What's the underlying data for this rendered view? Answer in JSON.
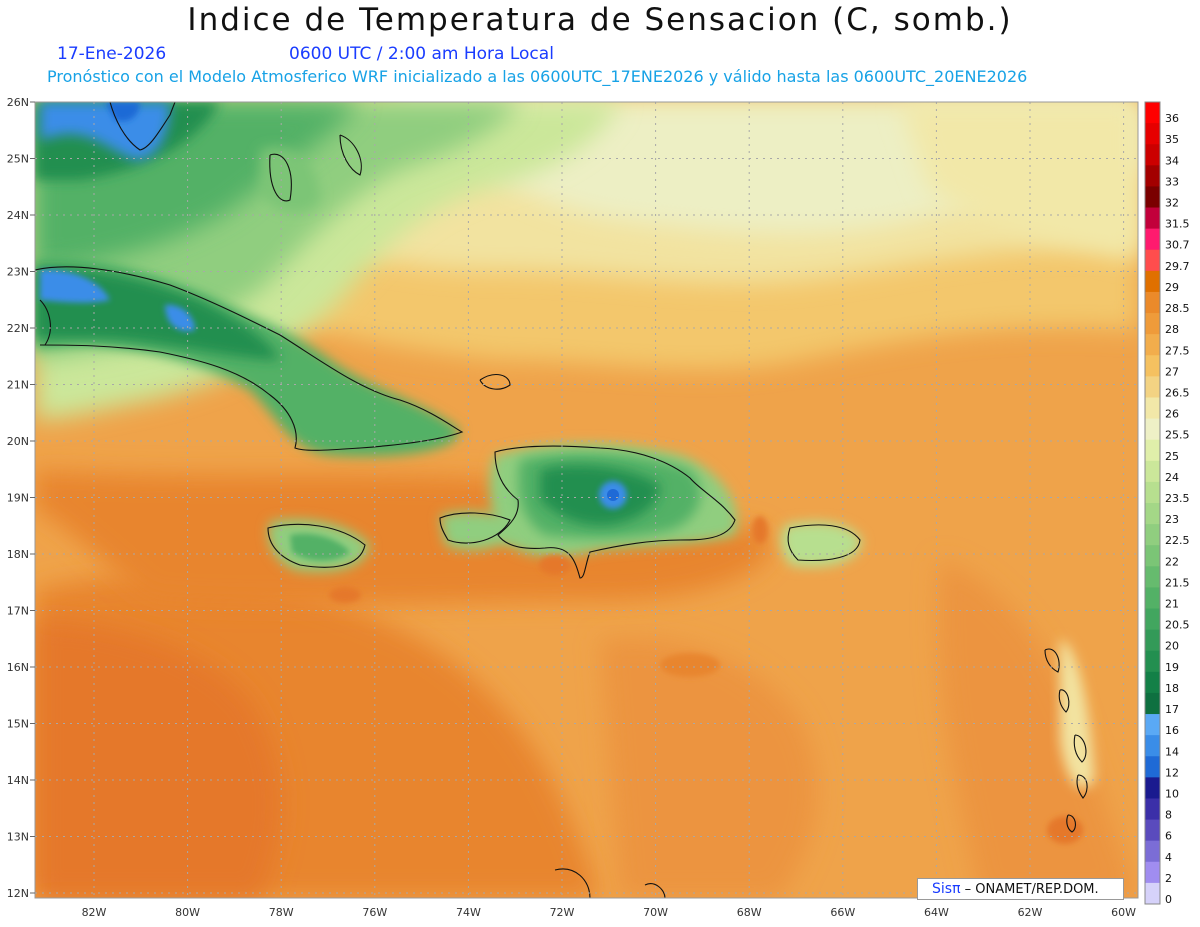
{
  "title": "Indice de Temperatura de Sensacion (C, somb.)",
  "subtitle": {
    "date": "17-Ene-2026",
    "time": "0600 UTC / 2:00 am Hora Local",
    "model": "Pronóstico con el Modelo Atmosferico WRF inicializado a las 0600UTC_17ENE2026 y válido hasta las  0600UTC_20ENE2026"
  },
  "credit": {
    "brand": "Sisπ",
    "org": "– ONAMET/REP.DOM."
  },
  "map": {
    "lon_labels": [
      "82W",
      "80W",
      "78W",
      "76W",
      "74W",
      "72W",
      "70W",
      "68W",
      "66W",
      "64W",
      "62W",
      "60W"
    ],
    "lat_labels": [
      "26N",
      "25N",
      "24N",
      "23N",
      "22N",
      "21N",
      "20N",
      "19N",
      "18N",
      "17N",
      "16N",
      "15N",
      "14N",
      "13N",
      "12N"
    ]
  },
  "colorbar": {
    "levels": [
      "36",
      "35",
      "34",
      "33",
      "32",
      "31.5",
      "30.7",
      "29.7",
      "29",
      "28.5",
      "28",
      "27.5",
      "27",
      "26.5",
      "26",
      "25.5",
      "25",
      "24",
      "23.5",
      "23",
      "22.5",
      "22",
      "21.5",
      "21",
      "20.5",
      "20",
      "19",
      "18",
      "17",
      "16",
      "14",
      "12",
      "10",
      "8",
      "6",
      "4",
      "2",
      "0"
    ],
    "colors": [
      "#ff0000",
      "#e60000",
      "#cc0000",
      "#a30000",
      "#7a0000",
      "#c2003b",
      "#ff1a6e",
      "#ff4d4d",
      "#e07000",
      "#eb8a2a",
      "#ef9b3a",
      "#f2ad4c",
      "#f5c160",
      "#f3d383",
      "#f2e8a8",
      "#eef0c6",
      "#e0efaa",
      "#cbe79a",
      "#b7df8f",
      "#a4d787",
      "#90ce7f",
      "#7bc576",
      "#66bb6e",
      "#53b166",
      "#42a65f",
      "#339a58",
      "#238f50",
      "#138047",
      "#0e7040",
      "#5aa9f5",
      "#3a8de8",
      "#1f6ad6",
      "#1a1a8f",
      "#3b2fa8",
      "#5a4bbd",
      "#7b6dd6",
      "#a08df0",
      "#d6d2fa"
    ]
  }
}
